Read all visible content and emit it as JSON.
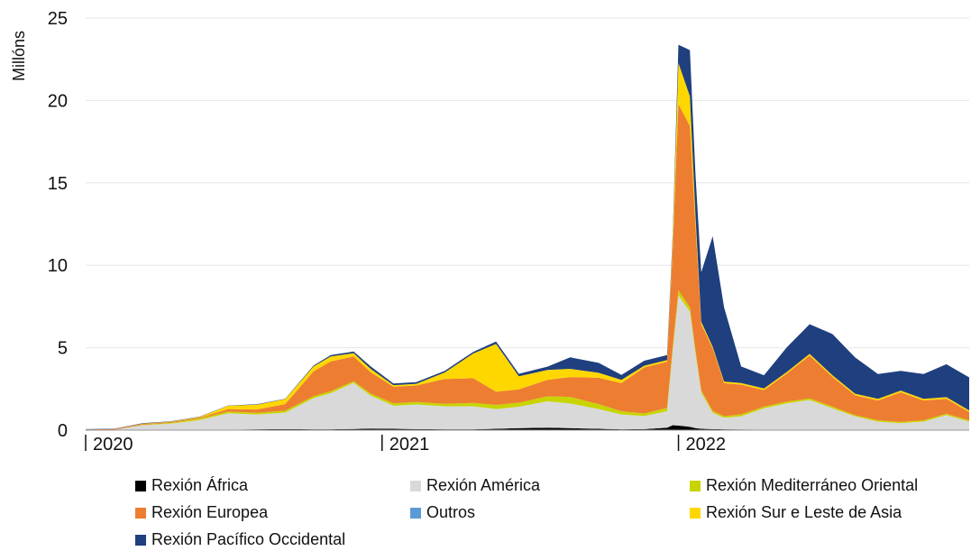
{
  "chart_data": {
    "type": "area",
    "stacked": true,
    "ylabel": "Millóns",
    "ylim": [
      0,
      25
    ],
    "yticks": [
      0,
      5,
      10,
      15,
      20,
      25
    ],
    "xlim": [
      "2020-01-05",
      "2022-12-25"
    ],
    "xticks": [
      {
        "date": "2020-01-05",
        "label": "2020"
      },
      {
        "date": "2021-01-03",
        "label": "2021"
      },
      {
        "date": "2022-01-02",
        "label": "2022"
      }
    ],
    "grid": "horizontal",
    "legend_position": "bottom",
    "x": [
      "2020-01-05",
      "2020-02-09",
      "2020-03-15",
      "2020-04-19",
      "2020-05-24",
      "2020-06-28",
      "2020-08-02",
      "2020-09-06",
      "2020-10-11",
      "2020-11-01",
      "2020-11-29",
      "2020-12-20",
      "2021-01-17",
      "2021-02-14",
      "2021-03-21",
      "2021-04-25",
      "2021-05-23",
      "2021-06-20",
      "2021-07-25",
      "2021-08-22",
      "2021-09-26",
      "2021-10-24",
      "2021-11-21",
      "2021-12-19",
      "2021-12-26",
      "2022-01-02",
      "2022-01-16",
      "2022-01-23",
      "2022-01-30",
      "2022-02-13",
      "2022-02-27",
      "2022-03-20",
      "2022-04-17",
      "2022-05-15",
      "2022-06-12",
      "2022-07-10",
      "2022-08-07",
      "2022-09-04",
      "2022-10-02",
      "2022-10-30",
      "2022-11-27",
      "2022-12-25"
    ],
    "series": [
      {
        "name": "Rexión África",
        "color": "#000000",
        "values": [
          0,
          0,
          0,
          0,
          0.02,
          0.03,
          0.05,
          0.06,
          0.05,
          0.05,
          0.07,
          0.1,
          0.08,
          0.06,
          0.05,
          0.05,
          0.08,
          0.12,
          0.15,
          0.12,
          0.08,
          0.05,
          0.06,
          0.15,
          0.3,
          0.28,
          0.2,
          0.12,
          0.08,
          0.06,
          0.05,
          0.04,
          0.03,
          0.03,
          0.03,
          0.03,
          0.03,
          0.02,
          0.02,
          0.02,
          0.02,
          0.02
        ]
      },
      {
        "name": "Rexión América",
        "color": "#d9d9d9",
        "values": [
          0.02,
          0.02,
          0.3,
          0.4,
          0.6,
          1.0,
          0.9,
          1.0,
          1.9,
          2.2,
          2.8,
          2.0,
          1.4,
          1.5,
          1.4,
          1.4,
          1.2,
          1.3,
          1.6,
          1.5,
          1.2,
          0.9,
          0.8,
          1.0,
          4.5,
          7.9,
          7.0,
          4.5,
          2.2,
          1.0,
          0.7,
          0.8,
          1.3,
          1.6,
          1.8,
          1.3,
          0.8,
          0.5,
          0.4,
          0.5,
          0.9,
          0.5
        ]
      },
      {
        "name": "Rexión Mediterráneo Oriental",
        "color": "#c8d400",
        "values": [
          0,
          0,
          0.03,
          0.05,
          0.08,
          0.1,
          0.1,
          0.12,
          0.12,
          0.12,
          0.1,
          0.12,
          0.15,
          0.15,
          0.15,
          0.2,
          0.25,
          0.25,
          0.3,
          0.4,
          0.3,
          0.2,
          0.15,
          0.2,
          0.3,
          0.3,
          0.25,
          0.2,
          0.15,
          0.1,
          0.1,
          0.12,
          0.1,
          0.1,
          0.1,
          0.1,
          0.08,
          0.08,
          0.08,
          0.08,
          0.08,
          0.08
        ]
      },
      {
        "name": "Rexión Europea",
        "color": "#ed7d31",
        "values": [
          0.02,
          0.05,
          0.05,
          0.05,
          0.05,
          0.15,
          0.2,
          0.4,
          1.5,
          1.8,
          1.5,
          1.3,
          1.0,
          1.0,
          1.5,
          1.5,
          0.8,
          0.8,
          1.0,
          1.2,
          1.6,
          1.7,
          2.8,
          2.8,
          6.0,
          11.3,
          11.0,
          7.5,
          4.0,
          3.8,
          2.0,
          1.8,
          1.0,
          1.7,
          2.6,
          1.8,
          1.2,
          1.2,
          1.8,
          1.2,
          0.9,
          0.5
        ]
      },
      {
        "name": "Outros",
        "color": "#5b9bd5",
        "values": [
          0,
          0,
          0,
          0,
          0,
          0,
          0,
          0,
          0,
          0,
          0,
          0,
          0,
          0,
          0,
          0,
          0,
          0,
          0,
          0,
          0,
          0,
          0,
          0,
          0,
          0,
          0,
          0,
          0,
          0,
          0,
          0,
          0,
          0,
          0,
          0,
          0,
          0,
          0,
          0,
          0,
          0
        ]
      },
      {
        "name": "Rexión Sur e Leste de Asia",
        "color": "#ffd700",
        "values": [
          0,
          0,
          0.02,
          0.02,
          0.05,
          0.2,
          0.3,
          0.3,
          0.3,
          0.3,
          0.2,
          0.2,
          0.1,
          0.1,
          0.4,
          1.5,
          2.9,
          0.8,
          0.6,
          0.5,
          0.3,
          0.2,
          0.1,
          0.1,
          0.5,
          2.5,
          1.8,
          0.6,
          0.15,
          0.1,
          0.1,
          0.1,
          0.1,
          0.1,
          0.1,
          0.1,
          0.1,
          0.1,
          0.1,
          0.1,
          0.1,
          0.1
        ]
      },
      {
        "name": "Rexión Pacífico Occidental",
        "color": "#1f3f7f",
        "values": [
          0.02,
          0.02,
          0.02,
          0.02,
          0.02,
          0.02,
          0.02,
          0.02,
          0.05,
          0.08,
          0.1,
          0.15,
          0.1,
          0.1,
          0.1,
          0.1,
          0.15,
          0.15,
          0.2,
          0.7,
          0.6,
          0.3,
          0.3,
          0.3,
          0.3,
          1.1,
          2.8,
          2.5,
          3.0,
          6.7,
          4.5,
          1.0,
          0.8,
          1.5,
          1.8,
          2.5,
          2.2,
          1.5,
          1.2,
          1.5,
          2.0,
          2.0
        ]
      }
    ]
  }
}
